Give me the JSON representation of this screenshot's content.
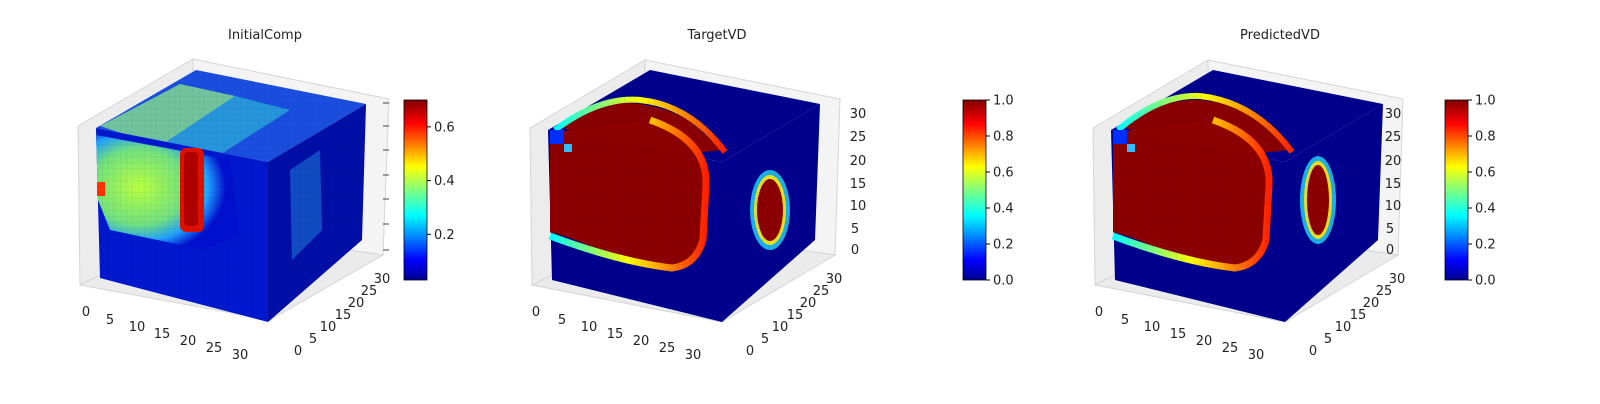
{
  "chart_data": [
    {
      "type": "voxel-3d",
      "title": "InitialComp",
      "x_ticks": [
        "0",
        "5",
        "10",
        "15",
        "20",
        "25",
        "30"
      ],
      "y_ticks": [
        "0",
        "5",
        "10",
        "15",
        "20",
        "25",
        "30"
      ],
      "z_ticks": [
        "",
        "",
        "",
        "",
        "",
        "",
        ""
      ],
      "colorbar": {
        "colormap": "jet",
        "min": 0.03,
        "max": 0.7,
        "ticks": [
          "0.2",
          "0.4",
          "0.6"
        ],
        "tick_values": [
          0.2,
          0.4,
          0.6
        ]
      },
      "front_face": "blue background with a green-yellow region on the left; a vertical red bar near x=18-21",
      "right_face": "mostly dark blue with a faint cyan vertical region"
    },
    {
      "type": "voxel-3d",
      "title": "TargetVD",
      "x_ticks": [
        "0",
        "5",
        "10",
        "15",
        "20",
        "25",
        "30"
      ],
      "y_ticks": [
        "0",
        "5",
        "10",
        "15",
        "20",
        "25",
        "30"
      ],
      "z_ticks": [
        "0",
        "5",
        "10",
        "15",
        "20",
        "25",
        "30"
      ],
      "colorbar": {
        "colormap": "jet",
        "min": 0.0,
        "max": 1.0,
        "ticks": [
          "0.0",
          "0.2",
          "0.4",
          "0.6",
          "0.8",
          "1.0"
        ],
        "tick_values": [
          0.0,
          0.2,
          0.4,
          0.6,
          0.8,
          1.0
        ]
      },
      "front_face": "large dark red region bounded by a jet-colored rim on blue background",
      "right_face": "dark red ellipse on dark blue background"
    },
    {
      "type": "voxel-3d",
      "title": "PredictedVD",
      "x_ticks": [
        "0",
        "5",
        "10",
        "15",
        "20",
        "25",
        "30"
      ],
      "y_ticks": [
        "0",
        "5",
        "10",
        "15",
        "20",
        "25",
        "30"
      ],
      "z_ticks": [
        "0",
        "5",
        "10",
        "15",
        "20",
        "25",
        "30"
      ],
      "colorbar": {
        "colormap": "jet",
        "min": 0.0,
        "max": 1.0,
        "ticks": [
          "0.0",
          "0.2",
          "0.4",
          "0.6",
          "0.8",
          "1.0"
        ],
        "tick_values": [
          0.0,
          0.2,
          0.4,
          0.6,
          0.8,
          1.0
        ]
      },
      "front_face": "large dark red region bounded by a jet-colored rim on blue background",
      "right_face": "dark red ellipse on dark blue background"
    }
  ],
  "colors": {
    "jet_dark_blue": "#00008f",
    "jet_blue": "#0000ff",
    "jet_cyan": "#00ffff",
    "jet_yellow": "#ffff00",
    "jet_red": "#ff0000",
    "jet_dark_red": "#800000"
  }
}
